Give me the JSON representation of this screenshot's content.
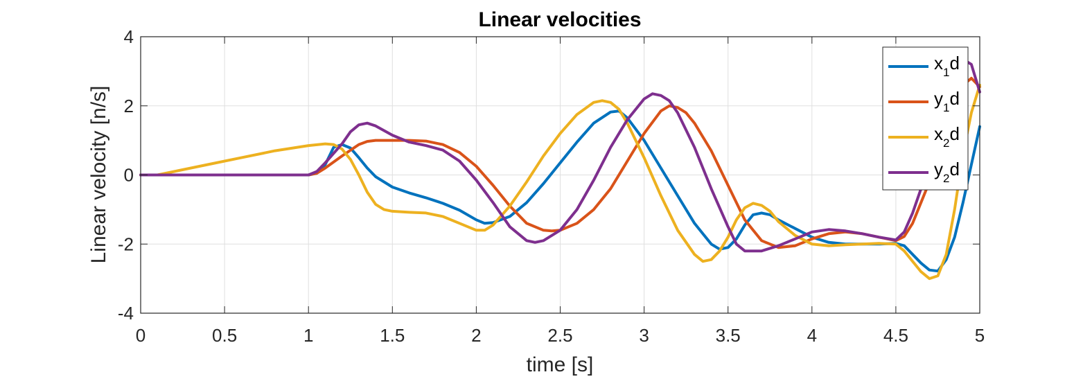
{
  "chart_data": {
    "type": "line",
    "title": "Linear velocities",
    "xlabel": "time [s]",
    "ylabel": "Linear velocity [n/s]",
    "xlim": [
      0,
      5
    ],
    "ylim": [
      -4,
      4
    ],
    "xticks": [
      0,
      0.5,
      1,
      1.5,
      2,
      2.5,
      3,
      3.5,
      4,
      4.5,
      5
    ],
    "xtick_labels": [
      "0",
      "0.5",
      "1",
      "1.5",
      "2",
      "2.5",
      "3",
      "3.5",
      "4",
      "4.5",
      "5"
    ],
    "yticks": [
      -4,
      -2,
      0,
      2,
      4
    ],
    "ytick_labels": [
      "-4",
      "-2",
      "0",
      "2",
      "4"
    ],
    "grid": true,
    "legend_position": "top-right",
    "series": [
      {
        "name": "x1d",
        "legend_main": "x",
        "legend_sub": "1",
        "legend_suffix": "d",
        "color": "#0072BD",
        "points": [
          [
            0,
            0
          ],
          [
            0.05,
            0
          ],
          [
            0.1,
            0
          ],
          [
            0.2,
            0
          ],
          [
            0.3,
            0
          ],
          [
            0.4,
            0
          ],
          [
            0.5,
            0
          ],
          [
            0.6,
            0
          ],
          [
            0.7,
            0
          ],
          [
            0.8,
            0
          ],
          [
            0.9,
            0
          ],
          [
            1.0,
            0
          ],
          [
            1.05,
            0.05
          ],
          [
            1.1,
            0.3
          ],
          [
            1.15,
            0.8
          ],
          [
            1.2,
            0.88
          ],
          [
            1.25,
            0.78
          ],
          [
            1.3,
            0.5
          ],
          [
            1.35,
            0.2
          ],
          [
            1.4,
            -0.05
          ],
          [
            1.5,
            -0.35
          ],
          [
            1.6,
            -0.52
          ],
          [
            1.7,
            -0.66
          ],
          [
            1.8,
            -0.82
          ],
          [
            1.9,
            -1.02
          ],
          [
            2.0,
            -1.3
          ],
          [
            2.05,
            -1.4
          ],
          [
            2.1,
            -1.38
          ],
          [
            2.2,
            -1.2
          ],
          [
            2.3,
            -0.8
          ],
          [
            2.4,
            -0.25
          ],
          [
            2.5,
            0.35
          ],
          [
            2.6,
            0.95
          ],
          [
            2.7,
            1.5
          ],
          [
            2.8,
            1.82
          ],
          [
            2.85,
            1.85
          ],
          [
            2.9,
            1.65
          ],
          [
            3.0,
            1.0
          ],
          [
            3.1,
            0.2
          ],
          [
            3.2,
            -0.6
          ],
          [
            3.3,
            -1.4
          ],
          [
            3.4,
            -2.0
          ],
          [
            3.45,
            -2.15
          ],
          [
            3.5,
            -2.1
          ],
          [
            3.55,
            -1.85
          ],
          [
            3.6,
            -1.45
          ],
          [
            3.65,
            -1.15
          ],
          [
            3.7,
            -1.1
          ],
          [
            3.75,
            -1.15
          ],
          [
            3.8,
            -1.3
          ],
          [
            3.9,
            -1.55
          ],
          [
            4.0,
            -1.8
          ],
          [
            4.1,
            -1.95
          ],
          [
            4.2,
            -2.0
          ],
          [
            4.3,
            -2.0
          ],
          [
            4.4,
            -2.0
          ],
          [
            4.5,
            -1.98
          ],
          [
            4.55,
            -2.05
          ],
          [
            4.6,
            -2.3
          ],
          [
            4.65,
            -2.55
          ],
          [
            4.7,
            -2.75
          ],
          [
            4.75,
            -2.78
          ],
          [
            4.8,
            -2.45
          ],
          [
            4.85,
            -1.8
          ],
          [
            4.9,
            -0.8
          ],
          [
            4.95,
            0.3
          ],
          [
            5.0,
            1.4
          ]
        ]
      },
      {
        "name": "y1d",
        "legend_main": "y",
        "legend_sub": "1",
        "legend_suffix": "d",
        "color": "#D95319",
        "points": [
          [
            0,
            0
          ],
          [
            1.0,
            0
          ],
          [
            1.05,
            0.05
          ],
          [
            1.1,
            0.2
          ],
          [
            1.2,
            0.55
          ],
          [
            1.3,
            0.88
          ],
          [
            1.35,
            0.97
          ],
          [
            1.4,
            1.0
          ],
          [
            1.5,
            1.0
          ],
          [
            1.6,
            1.0
          ],
          [
            1.7,
            0.98
          ],
          [
            1.8,
            0.88
          ],
          [
            1.9,
            0.65
          ],
          [
            2.0,
            0.25
          ],
          [
            2.1,
            -0.3
          ],
          [
            2.2,
            -0.9
          ],
          [
            2.3,
            -1.4
          ],
          [
            2.4,
            -1.6
          ],
          [
            2.45,
            -1.62
          ],
          [
            2.5,
            -1.6
          ],
          [
            2.6,
            -1.4
          ],
          [
            2.7,
            -1.0
          ],
          [
            2.8,
            -0.4
          ],
          [
            2.9,
            0.4
          ],
          [
            3.0,
            1.2
          ],
          [
            3.1,
            1.85
          ],
          [
            3.15,
            2.0
          ],
          [
            3.2,
            1.95
          ],
          [
            3.25,
            1.8
          ],
          [
            3.3,
            1.5
          ],
          [
            3.4,
            0.7
          ],
          [
            3.5,
            -0.3
          ],
          [
            3.6,
            -1.3
          ],
          [
            3.7,
            -1.9
          ],
          [
            3.8,
            -2.1
          ],
          [
            3.9,
            -2.05
          ],
          [
            4.0,
            -1.85
          ],
          [
            4.1,
            -1.7
          ],
          [
            4.2,
            -1.65
          ],
          [
            4.3,
            -1.7
          ],
          [
            4.4,
            -1.8
          ],
          [
            4.5,
            -1.9
          ],
          [
            4.55,
            -1.78
          ],
          [
            4.6,
            -1.4
          ],
          [
            4.7,
            -0.2
          ],
          [
            4.8,
            1.6
          ],
          [
            4.9,
            2.6
          ],
          [
            4.95,
            2.8
          ],
          [
            5.0,
            2.55
          ]
        ]
      },
      {
        "name": "x2d",
        "legend_main": "x",
        "legend_sub": "2",
        "legend_suffix": "d",
        "color": "#EDB120",
        "points": [
          [
            0,
            0
          ],
          [
            0.1,
            0
          ],
          [
            0.2,
            0.1
          ],
          [
            0.4,
            0.3
          ],
          [
            0.6,
            0.5
          ],
          [
            0.8,
            0.7
          ],
          [
            1.0,
            0.85
          ],
          [
            1.1,
            0.9
          ],
          [
            1.15,
            0.88
          ],
          [
            1.2,
            0.75
          ],
          [
            1.25,
            0.45
          ],
          [
            1.3,
            0.0
          ],
          [
            1.35,
            -0.5
          ],
          [
            1.4,
            -0.85
          ],
          [
            1.45,
            -1.0
          ],
          [
            1.5,
            -1.05
          ],
          [
            1.6,
            -1.08
          ],
          [
            1.7,
            -1.1
          ],
          [
            1.8,
            -1.2
          ],
          [
            1.9,
            -1.4
          ],
          [
            2.0,
            -1.6
          ],
          [
            2.05,
            -1.6
          ],
          [
            2.1,
            -1.45
          ],
          [
            2.2,
            -0.9
          ],
          [
            2.3,
            -0.2
          ],
          [
            2.4,
            0.55
          ],
          [
            2.5,
            1.2
          ],
          [
            2.6,
            1.75
          ],
          [
            2.7,
            2.1
          ],
          [
            2.75,
            2.15
          ],
          [
            2.8,
            2.1
          ],
          [
            2.85,
            1.9
          ],
          [
            2.9,
            1.5
          ],
          [
            3.0,
            0.5
          ],
          [
            3.1,
            -0.6
          ],
          [
            3.2,
            -1.6
          ],
          [
            3.3,
            -2.3
          ],
          [
            3.35,
            -2.5
          ],
          [
            3.4,
            -2.45
          ],
          [
            3.45,
            -2.2
          ],
          [
            3.5,
            -1.8
          ],
          [
            3.55,
            -1.3
          ],
          [
            3.6,
            -0.95
          ],
          [
            3.65,
            -0.82
          ],
          [
            3.7,
            -0.88
          ],
          [
            3.75,
            -1.05
          ],
          [
            3.8,
            -1.35
          ],
          [
            3.9,
            -1.75
          ],
          [
            4.0,
            -2.0
          ],
          [
            4.1,
            -2.05
          ],
          [
            4.2,
            -2.02
          ],
          [
            4.3,
            -2.0
          ],
          [
            4.4,
            -1.98
          ],
          [
            4.5,
            -2.0
          ],
          [
            4.55,
            -2.2
          ],
          [
            4.6,
            -2.5
          ],
          [
            4.65,
            -2.8
          ],
          [
            4.7,
            -3.0
          ],
          [
            4.75,
            -2.92
          ],
          [
            4.8,
            -2.3
          ],
          [
            4.85,
            -1.0
          ],
          [
            4.9,
            0.6
          ],
          [
            4.95,
            1.8
          ],
          [
            5.0,
            2.6
          ]
        ]
      },
      {
        "name": "y2d",
        "legend_main": "y",
        "legend_sub": "2",
        "legend_suffix": "d",
        "color": "#7E2F8E",
        "points": [
          [
            0,
            0
          ],
          [
            1.0,
            0
          ],
          [
            1.05,
            0.1
          ],
          [
            1.1,
            0.35
          ],
          [
            1.2,
            0.9
          ],
          [
            1.25,
            1.25
          ],
          [
            1.3,
            1.45
          ],
          [
            1.35,
            1.5
          ],
          [
            1.4,
            1.42
          ],
          [
            1.5,
            1.15
          ],
          [
            1.6,
            0.95
          ],
          [
            1.7,
            0.85
          ],
          [
            1.8,
            0.72
          ],
          [
            1.9,
            0.4
          ],
          [
            2.0,
            -0.15
          ],
          [
            2.1,
            -0.8
          ],
          [
            2.2,
            -1.5
          ],
          [
            2.3,
            -1.9
          ],
          [
            2.35,
            -1.95
          ],
          [
            2.4,
            -1.9
          ],
          [
            2.5,
            -1.6
          ],
          [
            2.6,
            -1.0
          ],
          [
            2.7,
            -0.15
          ],
          [
            2.8,
            0.8
          ],
          [
            2.9,
            1.6
          ],
          [
            3.0,
            2.2
          ],
          [
            3.05,
            2.35
          ],
          [
            3.1,
            2.3
          ],
          [
            3.15,
            2.15
          ],
          [
            3.2,
            1.8
          ],
          [
            3.3,
            0.8
          ],
          [
            3.4,
            -0.4
          ],
          [
            3.5,
            -1.5
          ],
          [
            3.55,
            -2.0
          ],
          [
            3.6,
            -2.2
          ],
          [
            3.7,
            -2.2
          ],
          [
            3.8,
            -2.05
          ],
          [
            3.9,
            -1.85
          ],
          [
            4.0,
            -1.65
          ],
          [
            4.1,
            -1.58
          ],
          [
            4.2,
            -1.62
          ],
          [
            4.3,
            -1.7
          ],
          [
            4.4,
            -1.8
          ],
          [
            4.5,
            -1.88
          ],
          [
            4.55,
            -1.65
          ],
          [
            4.6,
            -1.1
          ],
          [
            4.7,
            0.3
          ],
          [
            4.8,
            2.0
          ],
          [
            4.85,
            2.9
          ],
          [
            4.9,
            3.35
          ],
          [
            4.95,
            3.2
          ],
          [
            5.0,
            2.4
          ]
        ]
      }
    ]
  }
}
